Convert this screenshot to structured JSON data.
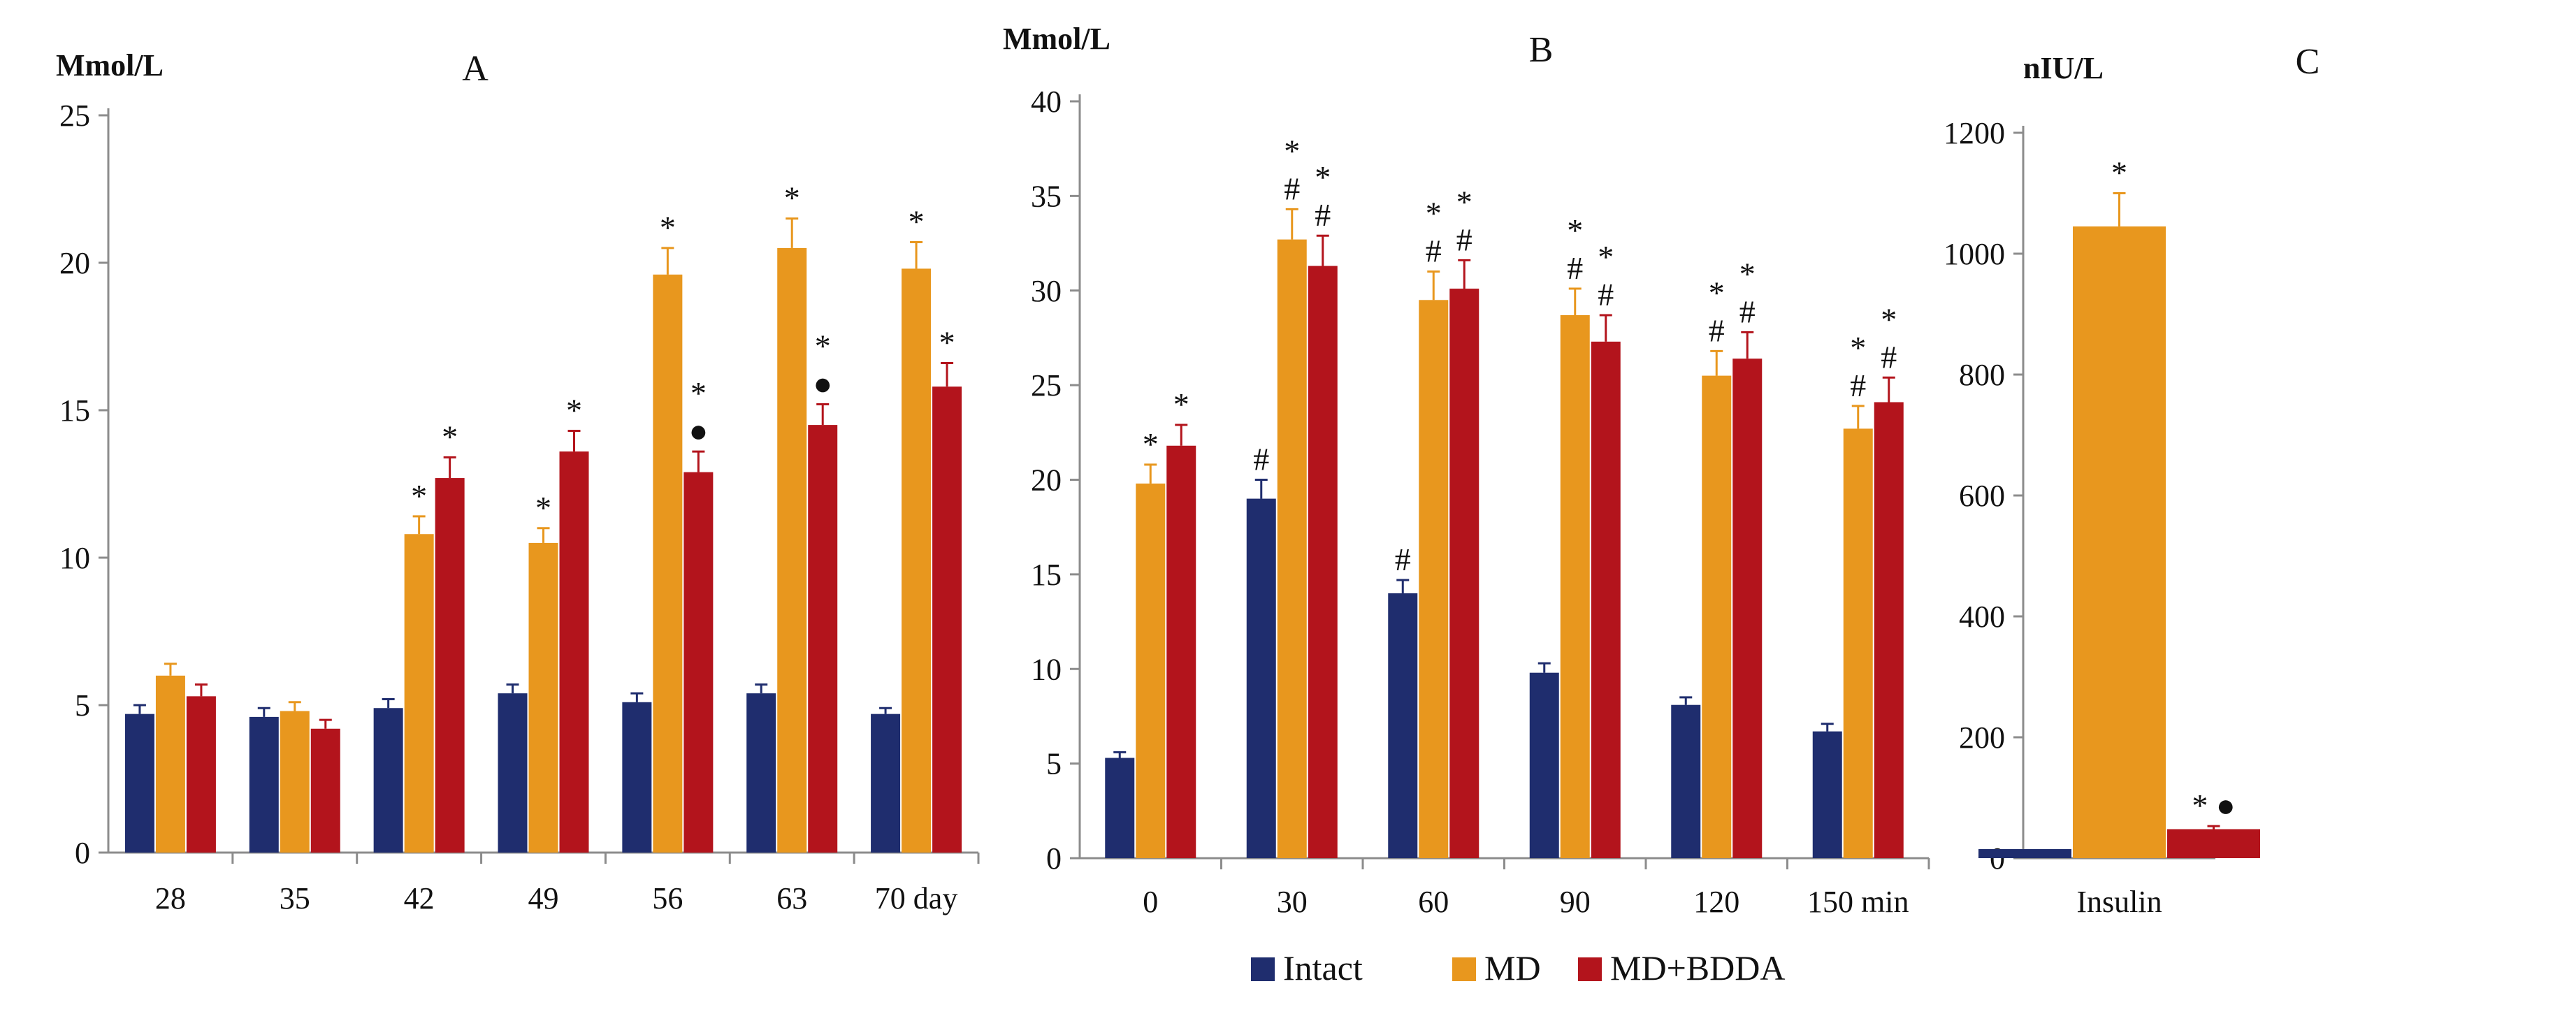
{
  "colors": {
    "Intact": "#1f2d6e",
    "MD": "#e8971e",
    "MD+BDDA": "#b3141c",
    "axis": "#8c8c8c",
    "text": "#111111"
  },
  "legend": {
    "entries": [
      "Intact",
      "MD",
      "MD+BDDA"
    ]
  },
  "chart_data": [
    {
      "type": "bar",
      "panel_label": "A",
      "ylabel": "Mmol/L",
      "ylim": [
        0,
        25
      ],
      "yticks": [
        0,
        5,
        10,
        15,
        20,
        25
      ],
      "categories": [
        "28",
        "35",
        "42",
        "49",
        "56",
        "63",
        "70 day"
      ],
      "series": [
        {
          "name": "Intact",
          "values": [
            4.7,
            4.6,
            4.9,
            5.4,
            5.1,
            5.4,
            4.7
          ],
          "errors": [
            0.3,
            0.3,
            0.3,
            0.3,
            0.3,
            0.3,
            0.2
          ],
          "marks": [
            "",
            "",
            "",
            "",
            "",
            "",
            ""
          ]
        },
        {
          "name": "MD",
          "values": [
            6.0,
            4.8,
            10.8,
            10.5,
            19.6,
            20.5,
            19.8
          ],
          "errors": [
            0.4,
            0.3,
            0.6,
            0.5,
            0.9,
            1.0,
            0.9
          ],
          "marks": [
            "",
            "",
            "*",
            "*",
            "*",
            "*",
            "*"
          ]
        },
        {
          "name": "MD+BDDA",
          "values": [
            5.3,
            4.2,
            12.7,
            13.6,
            12.9,
            14.5,
            15.8
          ],
          "errors": [
            0.4,
            0.3,
            0.7,
            0.7,
            0.7,
            0.7,
            0.8
          ],
          "marks": [
            "",
            "",
            "*",
            "*",
            "*\n●",
            "*\n●",
            "*"
          ]
        }
      ]
    },
    {
      "type": "bar",
      "panel_label": "B",
      "ylabel": "Mmol/L",
      "ylim": [
        0,
        40
      ],
      "yticks": [
        0,
        5,
        10,
        15,
        20,
        25,
        30,
        35,
        40
      ],
      "categories": [
        "0",
        "30",
        "60",
        "90",
        "120",
        "150 min"
      ],
      "series": [
        {
          "name": "Intact",
          "values": [
            5.3,
            19.0,
            14.0,
            9.8,
            8.1,
            6.7
          ],
          "errors": [
            0.3,
            1.0,
            0.7,
            0.5,
            0.4,
            0.4
          ],
          "marks": [
            "",
            "#",
            "#",
            "",
            "",
            ""
          ]
        },
        {
          "name": "MD",
          "values": [
            19.8,
            32.7,
            29.5,
            28.7,
            25.5,
            22.7
          ],
          "errors": [
            1.0,
            1.6,
            1.5,
            1.4,
            1.3,
            1.2
          ],
          "marks": [
            "*",
            "*\n#",
            "*\n#",
            "*\n#",
            "*\n#",
            "*\n#"
          ]
        },
        {
          "name": "MD+BDDA",
          "values": [
            21.8,
            31.3,
            30.1,
            27.3,
            26.4,
            24.1
          ],
          "errors": [
            1.1,
            1.6,
            1.5,
            1.4,
            1.4,
            1.3
          ],
          "marks": [
            "*",
            "*\n#",
            "*\n#",
            "*\n#",
            "*\n#",
            "*\n#"
          ]
        }
      ]
    },
    {
      "type": "bar",
      "panel_label": "C",
      "ylabel": "nIU/L",
      "ylim": [
        0,
        1200
      ],
      "yticks": [
        0,
        200,
        400,
        600,
        800,
        1000,
        1200
      ],
      "categories": [
        "Insulin"
      ],
      "series": [
        {
          "name": "Intact",
          "values": [
            15
          ],
          "errors": [
            0
          ],
          "marks": [
            ""
          ]
        },
        {
          "name": "MD",
          "values": [
            1045
          ],
          "errors": [
            55
          ],
          "marks": [
            "*"
          ]
        },
        {
          "name": "MD+BDDA",
          "values": [
            48
          ],
          "errors": [
            5
          ],
          "marks": [
            "* ●"
          ]
        }
      ]
    }
  ]
}
